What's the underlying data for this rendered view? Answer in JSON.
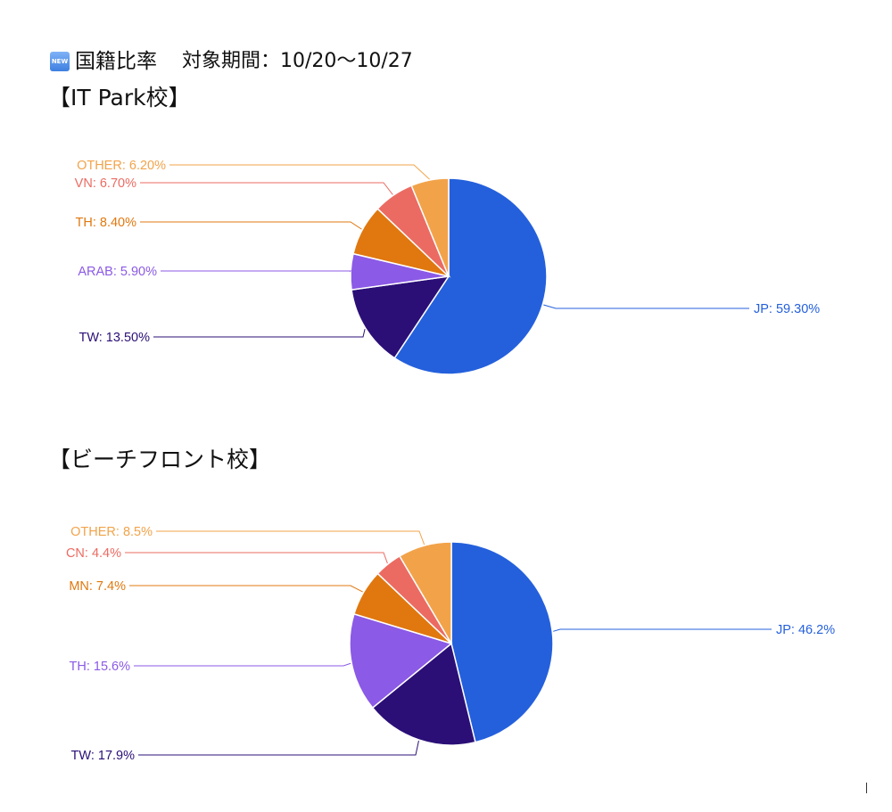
{
  "header": {
    "badge": "NEW",
    "title": "国籍比率",
    "period": "対象期間：10/20〜10/27"
  },
  "chart_data": [
    {
      "type": "pie",
      "title": "【IT Park校】",
      "slices": [
        {
          "label": "JP: 59.30%",
          "value": 59.3,
          "color": "#2460dc",
          "line_color": "#2460dc"
        },
        {
          "label": "TW: 13.50%",
          "value": 13.5,
          "color": "#2b0f77",
          "line_color": "#2b0f77"
        },
        {
          "label": "ARAB: 5.90%",
          "value": 5.9,
          "color": "#8b5ae6",
          "line_color": "#8b5ae6"
        },
        {
          "label": "TH: 8.40%",
          "value": 8.4,
          "color": "#e0780f",
          "line_color": "#e0780f"
        },
        {
          "label": "VN: 6.70%",
          "value": 6.7,
          "color": "#eb6b62",
          "line_color": "#eb6b62"
        },
        {
          "label": "OTHER: 6.20%",
          "value": 6.2,
          "color": "#f2a34a",
          "line_color": "#f2a34a"
        }
      ]
    },
    {
      "type": "pie",
      "title": "【ビーチフロント校】",
      "slices": [
        {
          "label": "JP: 46.2%",
          "value": 46.2,
          "color": "#2460dc",
          "line_color": "#2460dc"
        },
        {
          "label": "TW: 17.9%",
          "value": 17.9,
          "color": "#2b0f77",
          "line_color": "#2b0f77"
        },
        {
          "label": "TH: 15.6%",
          "value": 15.6,
          "color": "#8b5ae6",
          "line_color": "#8b5ae6"
        },
        {
          "label": "MN: 7.4%",
          "value": 7.4,
          "color": "#e0780f",
          "line_color": "#e0780f"
        },
        {
          "label": "CN: 4.4%",
          "value": 4.4,
          "color": "#eb6b62",
          "line_color": "#eb6b62"
        },
        {
          "label": "OTHER: 8.5%",
          "value": 8.5,
          "color": "#f2a34a",
          "line_color": "#f2a34a"
        }
      ]
    }
  ]
}
